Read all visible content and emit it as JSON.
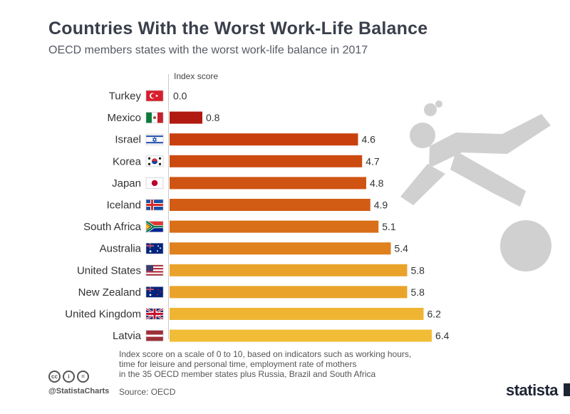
{
  "header": {
    "title": "Countries With the Worst Work-Life Balance",
    "subtitle": "OECD members states with the worst work-life balance in 2017"
  },
  "chart_data": {
    "type": "bar",
    "orientation": "horizontal",
    "value_header": "Index score",
    "categories": [
      "Turkey",
      "Mexico",
      "Israel",
      "Korea",
      "Japan",
      "Iceland",
      "South Africa",
      "Australia",
      "United States",
      "New Zealand",
      "United Kingdom",
      "Latvia"
    ],
    "values": [
      0.0,
      0.8,
      4.6,
      4.7,
      4.8,
      4.9,
      5.1,
      5.4,
      5.8,
      5.8,
      6.2,
      6.4
    ],
    "value_labels": [
      "0.0",
      "0.8",
      "4.6",
      "4.7",
      "4.8",
      "4.9",
      "5.1",
      "5.4",
      "5.8",
      "5.8",
      "6.2",
      "6.4"
    ],
    "bar_colors": [
      "#b01a10",
      "#b01a10",
      "#c9400e",
      "#cc4a10",
      "#cf5312",
      "#d25c14",
      "#d96f18",
      "#df811c",
      "#eaa32a",
      "#eaa32a",
      "#efb532",
      "#f2bd36"
    ],
    "flags": [
      "turkey-flag",
      "mexico-flag",
      "israel-flag",
      "korea-flag",
      "japan-flag",
      "iceland-flag",
      "south-africa-flag",
      "australia-flag",
      "united-states-flag",
      "new-zealand-flag",
      "united-kingdom-flag",
      "latvia-flag"
    ],
    "xlim": [
      0,
      10
    ],
    "grid": false,
    "legend": "none"
  },
  "footer": {
    "note_lines": [
      "Index score on a scale of 0 to 10, based on indicators such as working hours,",
      "time for leisure and personal time, employment rate of mothers",
      "in the 35 OECD member states plus Russia, Brazil and South Africa"
    ],
    "source": "Source: OECD",
    "handle": "@StatistaCharts",
    "brand": "statista",
    "license_icons": [
      "cc-icon",
      "by-icon",
      "nd-icon"
    ],
    "license_glyphs": [
      "cc",
      "i",
      "="
    ]
  }
}
